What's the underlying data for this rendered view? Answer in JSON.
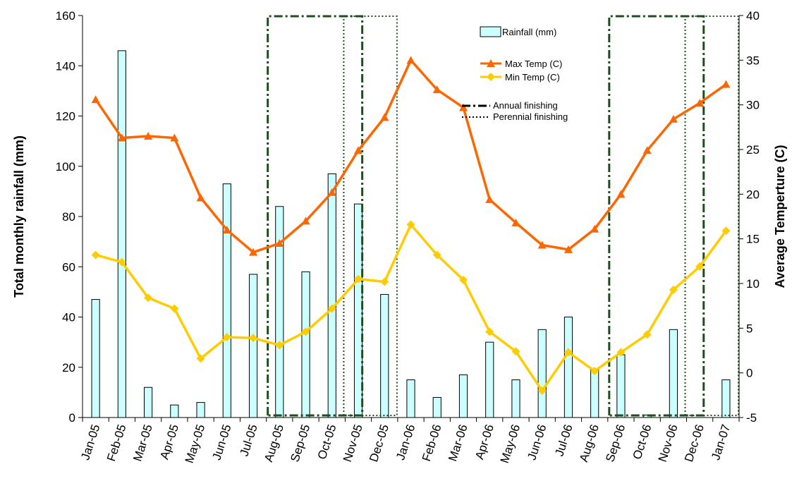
{
  "chart_data": {
    "type": "bar",
    "categories": [
      "Jan-05",
      "Feb-05",
      "Mar-05",
      "Apr-05",
      "May-05",
      "Jun-05",
      "Jul-05",
      "Aug-05",
      "Sep-05",
      "Oct-05",
      "Nov-05",
      "Dec-05",
      "Jan-06",
      "Feb-06",
      "Mar-06",
      "Apr-06",
      "May-06",
      "Jun-06",
      "Jul-06",
      "Aug-06",
      "Sep-06",
      "Oct-06",
      "Nov-06",
      "Dec-06",
      "Jan-07"
    ],
    "tick_labels": [
      "Jan-05",
      "Feb-05",
      "Mar-05",
      "Apr-05",
      "May-05",
      "Jun-05",
      "Jul-05",
      "Aug-05",
      "Sep-05",
      "Oct-05",
      "Nov-05",
      "Dec-05",
      "Jan-06",
      "Feb-06",
      "Mar-06",
      "Apr-06",
      "May-06",
      "Jun-06",
      "Jul-06",
      "Aug-06",
      "Sep-06",
      "Oct-06",
      "Nov-06",
      "Dec-06",
      "Jan-07"
    ],
    "ylabel": "Total monthly rainfall (mm)",
    "y2label": "Average Temperture (C)",
    "ylim": [
      0,
      160
    ],
    "y_ticks": [
      0,
      20,
      40,
      60,
      80,
      100,
      120,
      140,
      160
    ],
    "y2lim": [
      -5,
      40
    ],
    "y2_ticks": [
      -5,
      0,
      5,
      10,
      15,
      20,
      25,
      30,
      35,
      40
    ],
    "grid": false,
    "legend_position": "top-right",
    "series": [
      {
        "name": "Rainfall (mm)",
        "type": "bar",
        "axis": "left",
        "color": "#ccffff",
        "values": [
          47,
          146,
          12,
          5,
          6,
          93,
          57,
          84,
          58,
          97,
          85,
          49,
          15,
          8,
          17,
          30,
          15,
          35,
          40,
          19,
          25,
          1,
          35,
          0,
          15
        ]
      },
      {
        "name": "Max Temp (C)",
        "type": "line",
        "axis": "right",
        "color": "#ff6600",
        "marker": "triangle",
        "values": [
          30.6,
          26.3,
          26.5,
          26.3,
          19.6,
          16.0,
          13.5,
          14.5,
          17.0,
          20.2,
          24.9,
          28.6,
          35.0,
          31.7,
          29.7,
          19.4,
          16.8,
          14.3,
          13.8,
          16.1,
          20.0,
          24.9,
          28.4,
          30.2,
          32.3
        ]
      },
      {
        "name": "Min Temp (C)",
        "type": "line",
        "axis": "right",
        "color": "#ffcc00",
        "marker": "diamond",
        "values": [
          13.2,
          12.4,
          8.4,
          7.2,
          1.6,
          4.0,
          3.9,
          3.1,
          4.6,
          7.2,
          10.5,
          10.2,
          16.6,
          13.2,
          10.4,
          4.6,
          2.4,
          -2.0,
          2.3,
          0.2,
          2.3,
          4.3,
          9.3,
          11.9,
          15.9
        ]
      }
    ],
    "annotations": [
      {
        "name": "Annual finishing",
        "style": "dash-dot",
        "color": "#1f4d1f",
        "spans": [
          [
            "Aug-05",
            "Nov-05"
          ],
          [
            "Sep-06",
            "Dec-06"
          ]
        ]
      },
      {
        "name": "Perennial finishing",
        "style": "dotted",
        "color": "#1f4d1f",
        "spans": [
          [
            "Nov-05",
            "Dec-05"
          ],
          [
            "Dec-06",
            "Jan-07"
          ]
        ]
      }
    ]
  }
}
